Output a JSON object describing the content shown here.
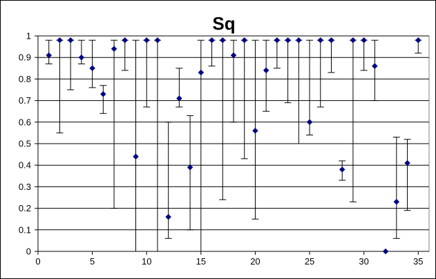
{
  "chart_data": {
    "type": "scatter",
    "title": "Sq",
    "xlabel": "",
    "ylabel": "",
    "xlim": [
      0,
      36
    ],
    "ylim": [
      0,
      1
    ],
    "x_ticks": [
      "0",
      "5",
      "10",
      "15",
      "20",
      "25",
      "30",
      "35"
    ],
    "y_ticks": [
      "0",
      "0.1",
      "0.2",
      "0.3",
      "0.4",
      "0.5",
      "0.6",
      "0.7",
      "0.8",
      "0.9",
      "1"
    ],
    "grid": "horizontal",
    "legend": "none",
    "marker_color": "#000080",
    "series": [
      {
        "marker": "diamond",
        "error_bars": true,
        "points": [
          {
            "x": 1,
            "y": 0.91,
            "low": 0.87,
            "high": 0.98
          },
          {
            "x": 2,
            "y": 0.98,
            "low": 0.55,
            "high": 0.98
          },
          {
            "x": 3,
            "y": 0.98,
            "low": 0.75,
            "high": 0.98
          },
          {
            "x": 4,
            "y": 0.9,
            "low": 0.87,
            "high": 0.98
          },
          {
            "x": 5,
            "y": 0.85,
            "low": 0.76,
            "high": 0.98
          },
          {
            "x": 6,
            "y": 0.73,
            "low": 0.64,
            "high": 0.77
          },
          {
            "x": 7,
            "y": 0.94,
            "low": 0.2,
            "high": 0.98
          },
          {
            "x": 8,
            "y": 0.98,
            "low": 0.84,
            "high": 0.98
          },
          {
            "x": 9,
            "y": 0.44,
            "low": 0.0,
            "high": 0.98
          },
          {
            "x": 10,
            "y": 0.98,
            "low": 0.67,
            "high": 0.98
          },
          {
            "x": 11,
            "y": 0.98,
            "low": 0.0,
            "high": 0.98
          },
          {
            "x": 12,
            "y": 0.16,
            "low": 0.06,
            "high": 0.6
          },
          {
            "x": 13,
            "y": 0.71,
            "low": 0.67,
            "high": 0.85
          },
          {
            "x": 14,
            "y": 0.39,
            "low": 0.1,
            "high": 0.63
          },
          {
            "x": 15,
            "y": 0.83,
            "low": 0.0,
            "high": 0.98
          },
          {
            "x": 16,
            "y": 0.98,
            "low": 0.86,
            "high": 0.98
          },
          {
            "x": 17,
            "y": 0.98,
            "low": 0.24,
            "high": 0.98
          },
          {
            "x": 18,
            "y": 0.91,
            "low": 0.6,
            "high": 0.98
          },
          {
            "x": 19,
            "y": 0.98,
            "low": 0.43,
            "high": 0.98
          },
          {
            "x": 20,
            "y": 0.56,
            "low": 0.15,
            "high": 0.98
          },
          {
            "x": 21,
            "y": 0.84,
            "low": 0.65,
            "high": 0.98
          },
          {
            "x": 22,
            "y": 0.98,
            "low": 0.85,
            "high": 0.98
          },
          {
            "x": 23,
            "y": 0.98,
            "low": 0.69,
            "high": 0.98
          },
          {
            "x": 24,
            "y": 0.98,
            "low": 0.5,
            "high": 0.98
          },
          {
            "x": 25,
            "y": 0.6,
            "low": 0.54,
            "high": 0.98
          },
          {
            "x": 26,
            "y": 0.98,
            "low": 0.67,
            "high": 0.98
          },
          {
            "x": 27,
            "y": 0.98,
            "low": 0.83,
            "high": 0.98
          },
          {
            "x": 28,
            "y": 0.38,
            "low": 0.33,
            "high": 0.42
          },
          {
            "x": 29,
            "y": 0.98,
            "low": 0.23,
            "high": 0.98
          },
          {
            "x": 30,
            "y": 0.98,
            "low": 0.84,
            "high": 0.98
          },
          {
            "x": 31,
            "y": 0.86,
            "low": 0.7,
            "high": 0.98
          },
          {
            "x": 32,
            "y": 0.0,
            "low": 0.0,
            "high": 0.0
          },
          {
            "x": 33,
            "y": 0.23,
            "low": 0.06,
            "high": 0.53
          },
          {
            "x": 34,
            "y": 0.41,
            "low": 0.19,
            "high": 0.52
          },
          {
            "x": 35,
            "y": 0.98,
            "low": 0.92,
            "high": 0.98
          }
        ]
      }
    ]
  }
}
